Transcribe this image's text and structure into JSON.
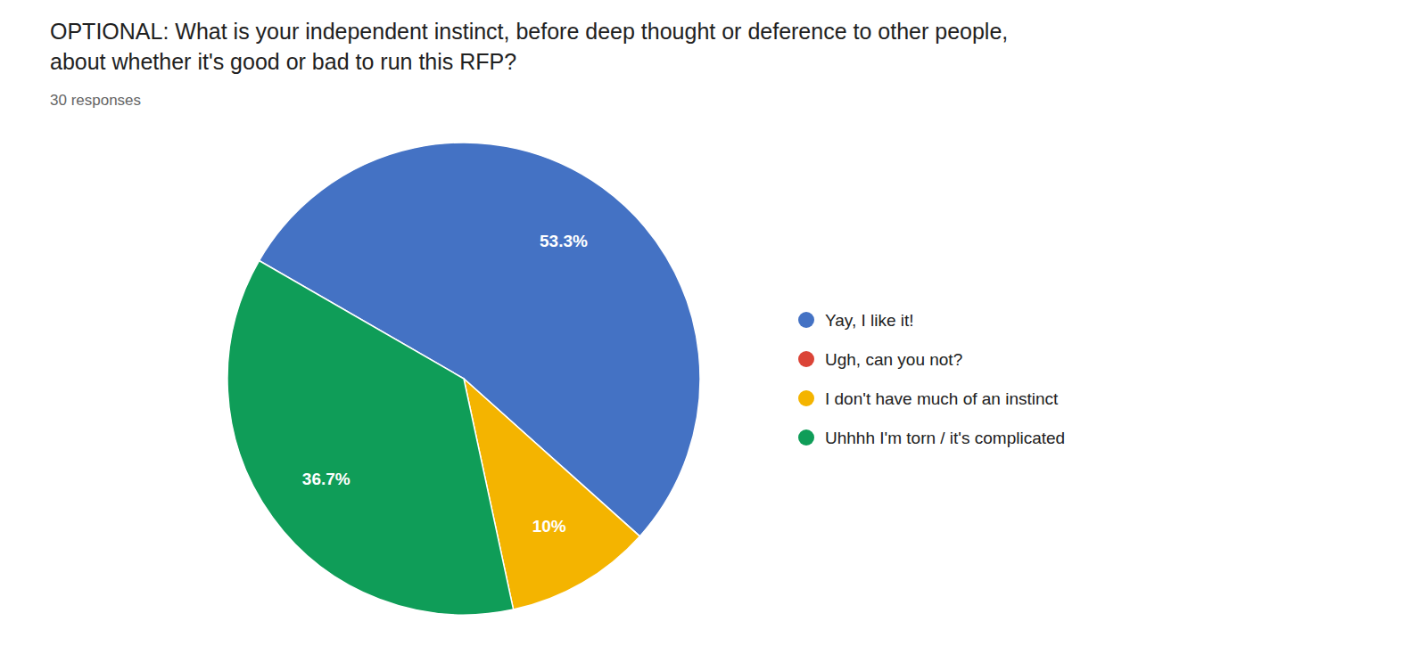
{
  "chart_data": {
    "type": "pie",
    "title": [
      "OPTIONAL: What is your independent instinct, before deep thought or deference to other people,",
      "about whether it's good or bad to run this RFP?"
    ],
    "subtitle": "30 responses",
    "categories": [
      "Yay, I like it!",
      "Ugh, can you not?",
      "I don't have much of an instinct",
      "Uhhhh I'm torn / it's complicated"
    ],
    "values": [
      53.3,
      0.001,
      10.0,
      36.7
    ],
    "value_labels": [
      "53.3%",
      null,
      "10%",
      "36.7%"
    ],
    "colors": [
      "#4472C4",
      "#DB4437",
      "#F4B400",
      "#0F9D58"
    ],
    "data_labels": true,
    "legend": "right"
  }
}
